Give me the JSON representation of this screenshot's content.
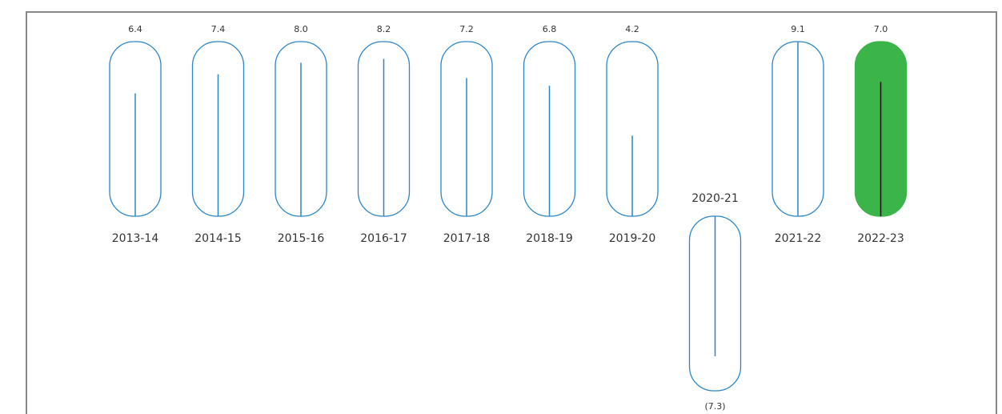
{
  "chart_data": {
    "type": "capsule",
    "categories": [
      "2013-14",
      "2014-15",
      "2015-16",
      "2016-17",
      "2017-18",
      "2018-19",
      "2019-20",
      "2020-21",
      "2021-22",
      "2022-23"
    ],
    "values": [
      6.4,
      7.4,
      8.0,
      8.2,
      7.2,
      6.8,
      4.2,
      -7.3,
      9.1,
      7.0
    ],
    "value_labels": [
      "6.4",
      "7.4",
      "8.0",
      "8.2",
      "7.2",
      "6.8",
      "4.2",
      "(7.3)",
      "9.1",
      "7.0"
    ],
    "colors": [
      "#2a86c8",
      "#2a86c8",
      "#2a86c8",
      "#2a86c8",
      "#2a86c8",
      "#2a86c8",
      "#2a86c8",
      "#2a86c8",
      "#2a86c8",
      "#3bb54a"
    ]
  }
}
